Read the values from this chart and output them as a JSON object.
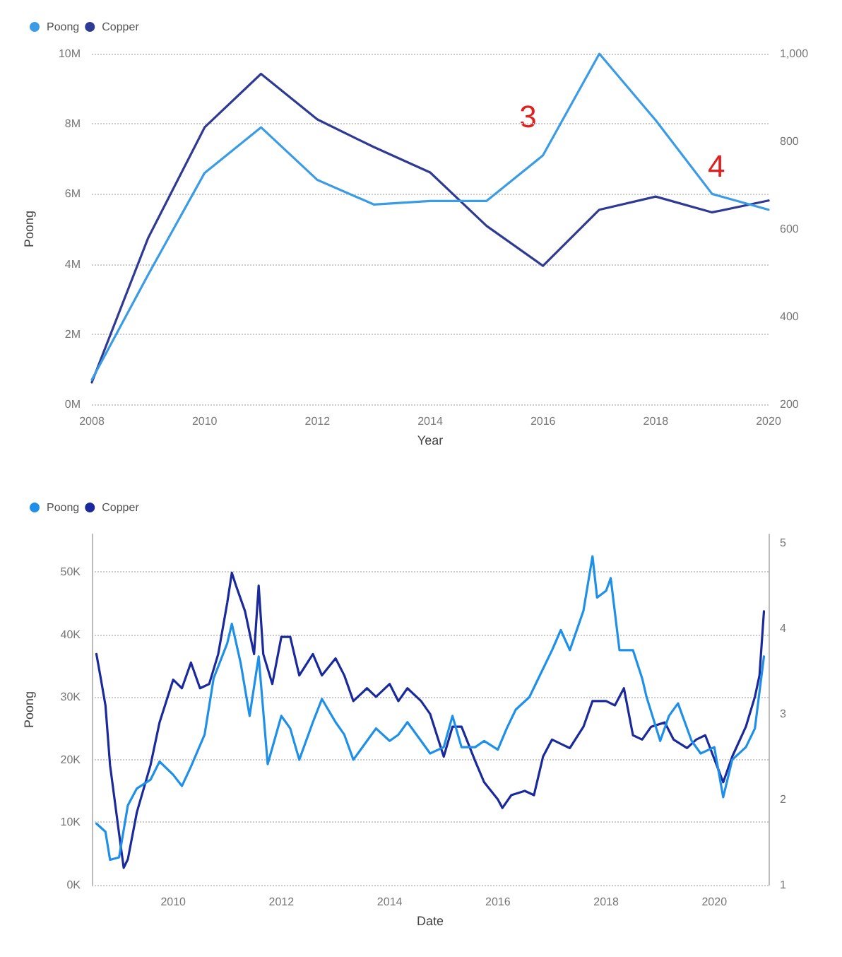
{
  "chart_data": [
    {
      "type": "line",
      "xlabel": "Year",
      "ylabel": "Poong",
      "x": [
        2008,
        2009,
        2010,
        2011,
        2012,
        2013,
        2014,
        2015,
        2016,
        2017,
        2018,
        2019,
        2020
      ],
      "series": [
        {
          "name": "Poong",
          "color": "#3a9ce6",
          "values": [
            700000,
            3700000,
            6600000,
            7900000,
            6400000,
            5700000,
            5800000,
            5800000,
            7100000,
            10000000,
            8100000,
            6000000,
            5550000
          ]
        },
        {
          "name": "Copper",
          "color": "#2e3a94",
          "axis": "y2",
          "values": [
            250,
            580,
            832,
            954,
            850,
            787,
            729,
            607,
            516,
            644,
            674,
            638,
            665
          ]
        }
      ],
      "xlim": [
        2008,
        2020
      ],
      "xticks": [
        2008,
        2010,
        2012,
        2014,
        2016,
        2018,
        2020
      ],
      "ylim": [
        0,
        10000000
      ],
      "yticks": [
        {
          "value": 0,
          "label": "0M"
        },
        {
          "value": 2000000,
          "label": "2M"
        },
        {
          "value": 4000000,
          "label": "4M"
        },
        {
          "value": 6000000,
          "label": "6M"
        },
        {
          "value": 8000000,
          "label": "8M"
        },
        {
          "value": 10000000,
          "label": "10M"
        }
      ],
      "y2lim": [
        200,
        1000
      ],
      "y2ticks": [
        200,
        400,
        600,
        800,
        {
          "value": 1000,
          "label": "1,000"
        }
      ],
      "annotations": [
        "3",
        "4"
      ],
      "grid": "y",
      "legend": "top left",
      "marker": "none",
      "line_style": "solid"
    },
    {
      "type": "line",
      "xlabel": "Date",
      "ylabel": "Poong",
      "series": [
        {
          "name": "Poong",
          "color": "#1e90ea",
          "x": [
            "2008-08",
            "2008-10",
            "2008-11",
            "2009-01",
            "2009-03",
            "2009-05",
            "2009-08",
            "2009-10",
            "2010-01",
            "2010-03",
            "2010-05",
            "2010-08",
            "2010-10",
            "2011-01",
            "2011-02",
            "2011-04",
            "2011-06",
            "2011-08",
            "2011-10",
            "2012-01",
            "2012-03",
            "2012-05",
            "2012-08",
            "2012-10",
            "2013-01",
            "2013-03",
            "2013-05",
            "2013-08",
            "2013-10",
            "2014-01",
            "2014-03",
            "2014-05",
            "2014-08",
            "2014-10",
            "2015-01",
            "2015-03",
            "2015-05",
            "2015-08",
            "2015-10",
            "2016-01",
            "2016-03",
            "2016-05",
            "2016-08",
            "2016-10",
            "2017-01",
            "2017-03",
            "2017-05",
            "2017-08",
            "2017-10",
            "2017-11",
            "2018-01",
            "2018-02",
            "2018-04",
            "2018-07",
            "2018-09",
            "2018-10",
            "2019-01",
            "2019-03",
            "2019-05",
            "2019-08",
            "2019-10",
            "2020-01",
            "2020-03",
            "2020-05",
            "2020-08",
            "2020-10",
            "2020-12"
          ],
          "values": [
            9800,
            8500,
            4000,
            4400,
            12700,
            15400,
            16800,
            19700,
            17600,
            15800,
            18900,
            24000,
            33000,
            38600,
            41700,
            35500,
            27000,
            36500,
            19300,
            27000,
            25000,
            20000,
            26000,
            29700,
            26000,
            24000,
            20000,
            23000,
            25000,
            23000,
            24000,
            26000,
            23000,
            21000,
            22000,
            27000,
            22000,
            22000,
            23000,
            21600,
            25000,
            28000,
            30000,
            33000,
            37500,
            40700,
            37500,
            43800,
            52500,
            45900,
            47000,
            49000,
            37500,
            37500,
            33000,
            30000,
            23000,
            27000,
            29000,
            23000,
            21000,
            22000,
            14000,
            20000,
            22000,
            25000,
            36500
          ]
        },
        {
          "name": "Copper",
          "color": "#1a2a9c",
          "axis": "y2",
          "x": [
            "2008-08",
            "2008-09",
            "2008-10",
            "2008-11",
            "2009-01",
            "2009-02",
            "2009-03",
            "2009-05",
            "2009-08",
            "2009-10",
            "2010-01",
            "2010-03",
            "2010-05",
            "2010-07",
            "2010-09",
            "2010-11",
            "2011-01",
            "2011-02",
            "2011-03",
            "2011-05",
            "2011-07",
            "2011-08",
            "2011-09",
            "2011-11",
            "2012-01",
            "2012-03",
            "2012-05",
            "2012-08",
            "2012-10",
            "2013-01",
            "2013-03",
            "2013-05",
            "2013-08",
            "2013-10",
            "2014-01",
            "2014-03",
            "2014-05",
            "2014-08",
            "2014-10",
            "2015-01",
            "2015-03",
            "2015-05",
            "2015-08",
            "2015-10",
            "2016-01",
            "2016-02",
            "2016-04",
            "2016-07",
            "2016-09",
            "2016-11",
            "2017-01",
            "2017-03",
            "2017-05",
            "2017-08",
            "2017-10",
            "2018-01",
            "2018-03",
            "2018-05",
            "2018-07",
            "2018-09",
            "2018-11",
            "2019-02",
            "2019-04",
            "2019-07",
            "2019-09",
            "2019-11",
            "2020-03",
            "2020-05",
            "2020-08",
            "2020-10",
            "2020-11",
            "2020-12"
          ],
          "values": [
            3.7,
            3.4,
            3.1,
            2.4,
            1.6,
            1.2,
            1.3,
            1.85,
            2.4,
            2.9,
            3.4,
            3.3,
            3.6,
            3.3,
            3.35,
            3.7,
            4.3,
            4.65,
            4.5,
            4.2,
            3.7,
            4.5,
            3.7,
            3.35,
            3.9,
            3.9,
            3.45,
            3.7,
            3.45,
            3.65,
            3.45,
            3.15,
            3.3,
            3.2,
            3.35,
            3.15,
            3.3,
            3.15,
            3.0,
            2.5,
            2.85,
            2.85,
            2.45,
            2.2,
            2.0,
            1.9,
            2.05,
            2.1,
            2.05,
            2.5,
            2.7,
            2.65,
            2.6,
            2.85,
            3.15,
            3.15,
            3.1,
            3.3,
            2.75,
            2.7,
            2.85,
            2.9,
            2.7,
            2.6,
            2.7,
            2.75,
            2.2,
            2.5,
            2.85,
            3.2,
            3.45,
            4.2
          ]
        }
      ],
      "xlim": [
        "2008-07",
        "2021-01"
      ],
      "xticks": [
        "2010",
        "2012",
        "2014",
        "2016",
        "2018",
        "2020"
      ],
      "ylim": [
        0,
        56000
      ],
      "yticks": [
        {
          "value": 0,
          "label": "0K"
        },
        {
          "value": 10000,
          "label": "10K"
        },
        {
          "value": 20000,
          "label": "20K"
        },
        {
          "value": 30000,
          "label": "30K"
        },
        {
          "value": 40000,
          "label": "40K"
        },
        {
          "value": 50000,
          "label": "50K"
        }
      ],
      "y2lim": [
        1,
        5.1
      ],
      "y2ticks": [
        1,
        2,
        3,
        4,
        5
      ],
      "grid": "y",
      "legend": "top left",
      "marker": "none",
      "line_style": "solid"
    }
  ]
}
